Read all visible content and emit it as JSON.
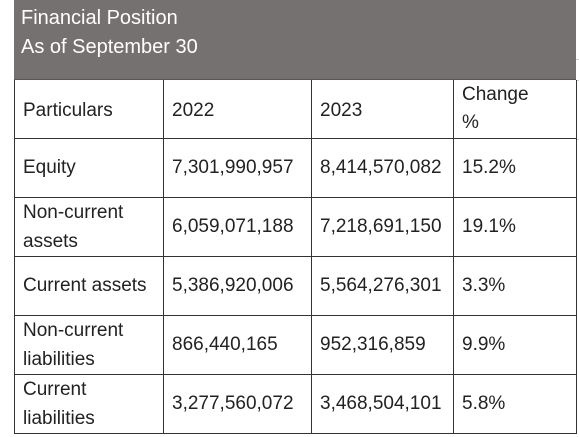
{
  "header": {
    "title": "Financial Position",
    "subtitle": "As of September 30"
  },
  "table": {
    "columns": [
      "Particulars",
      "2022",
      "2023",
      "Change\n%"
    ],
    "rows": [
      {
        "label": "Equity",
        "y2022": "7,301,990,957",
        "y2023": "8,414,570,082",
        "change": "15.2%"
      },
      {
        "label": "Non-current assets",
        "y2022": "6,059,071,188",
        "y2023": "7,218,691,150",
        "change": "19.1%"
      },
      {
        "label": "Current assets",
        "y2022": "5,386,920,006",
        "y2023": "5,564,276,301",
        "change": "3.3%"
      },
      {
        "label": "Non-current liabilities",
        "y2022": "866,440,165",
        "y2023": "952,316,859",
        "change": "9.9%"
      },
      {
        "label": "Current liabilities",
        "y2022": "3,277,560,072",
        "y2023": "3,468,504,101",
        "change": "5.8%"
      }
    ]
  },
  "colors": {
    "header_background": "#767171",
    "header_text": "#ffffff",
    "border": "#333333",
    "text": "#222222"
  }
}
